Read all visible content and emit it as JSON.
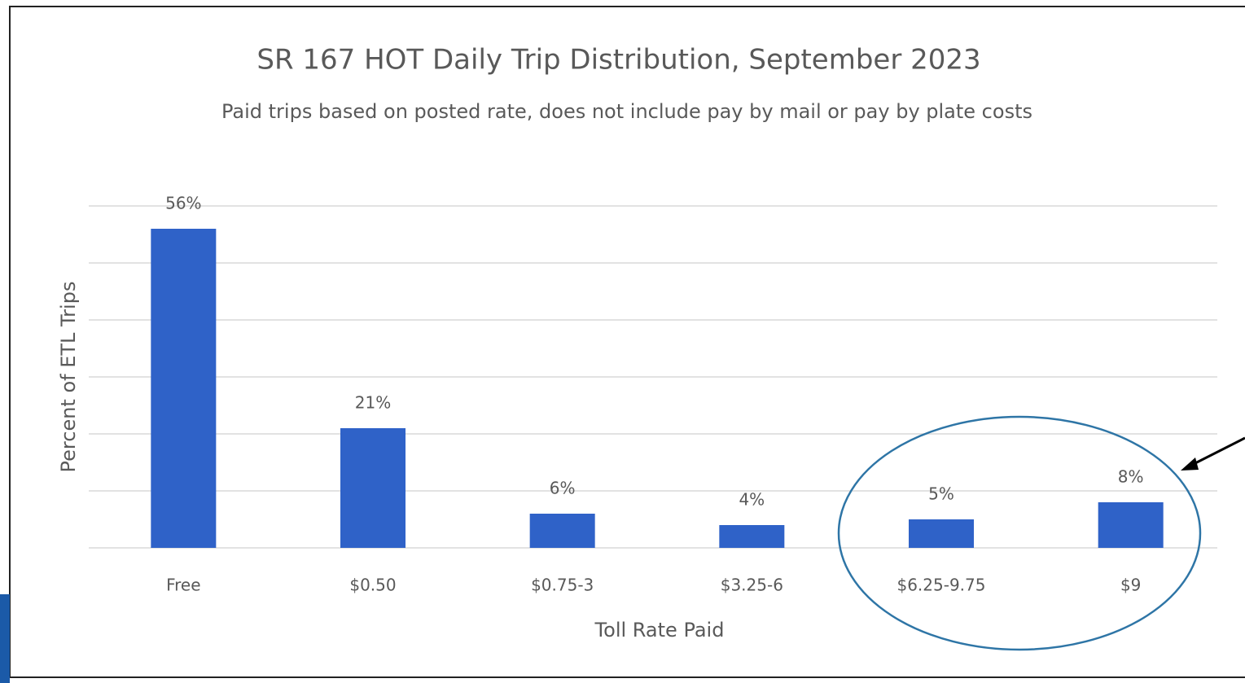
{
  "chart_data": {
    "type": "bar",
    "title": "SR 167 HOT Daily Trip Distribution, September 2023",
    "subtitle": "Paid trips based on posted rate, does not include pay by mail or pay by plate costs",
    "x_label": "Toll Rate Paid",
    "y_label": "Percent of ETL Trips",
    "categories": [
      "Free",
      "$0.50",
      "$0.75-3",
      "$3.25-6",
      "$6.25-9.75",
      "$9"
    ],
    "values": [
      56,
      21,
      6,
      4,
      5,
      8
    ],
    "value_labels": [
      "56%",
      "21%",
      "6%",
      "4%",
      "5%",
      "8%"
    ],
    "color": "#2f62c8",
    "ylim": [
      0,
      60
    ],
    "yticks": [
      0,
      10,
      20,
      30,
      40,
      50,
      60
    ],
    "grid": true
  }
}
